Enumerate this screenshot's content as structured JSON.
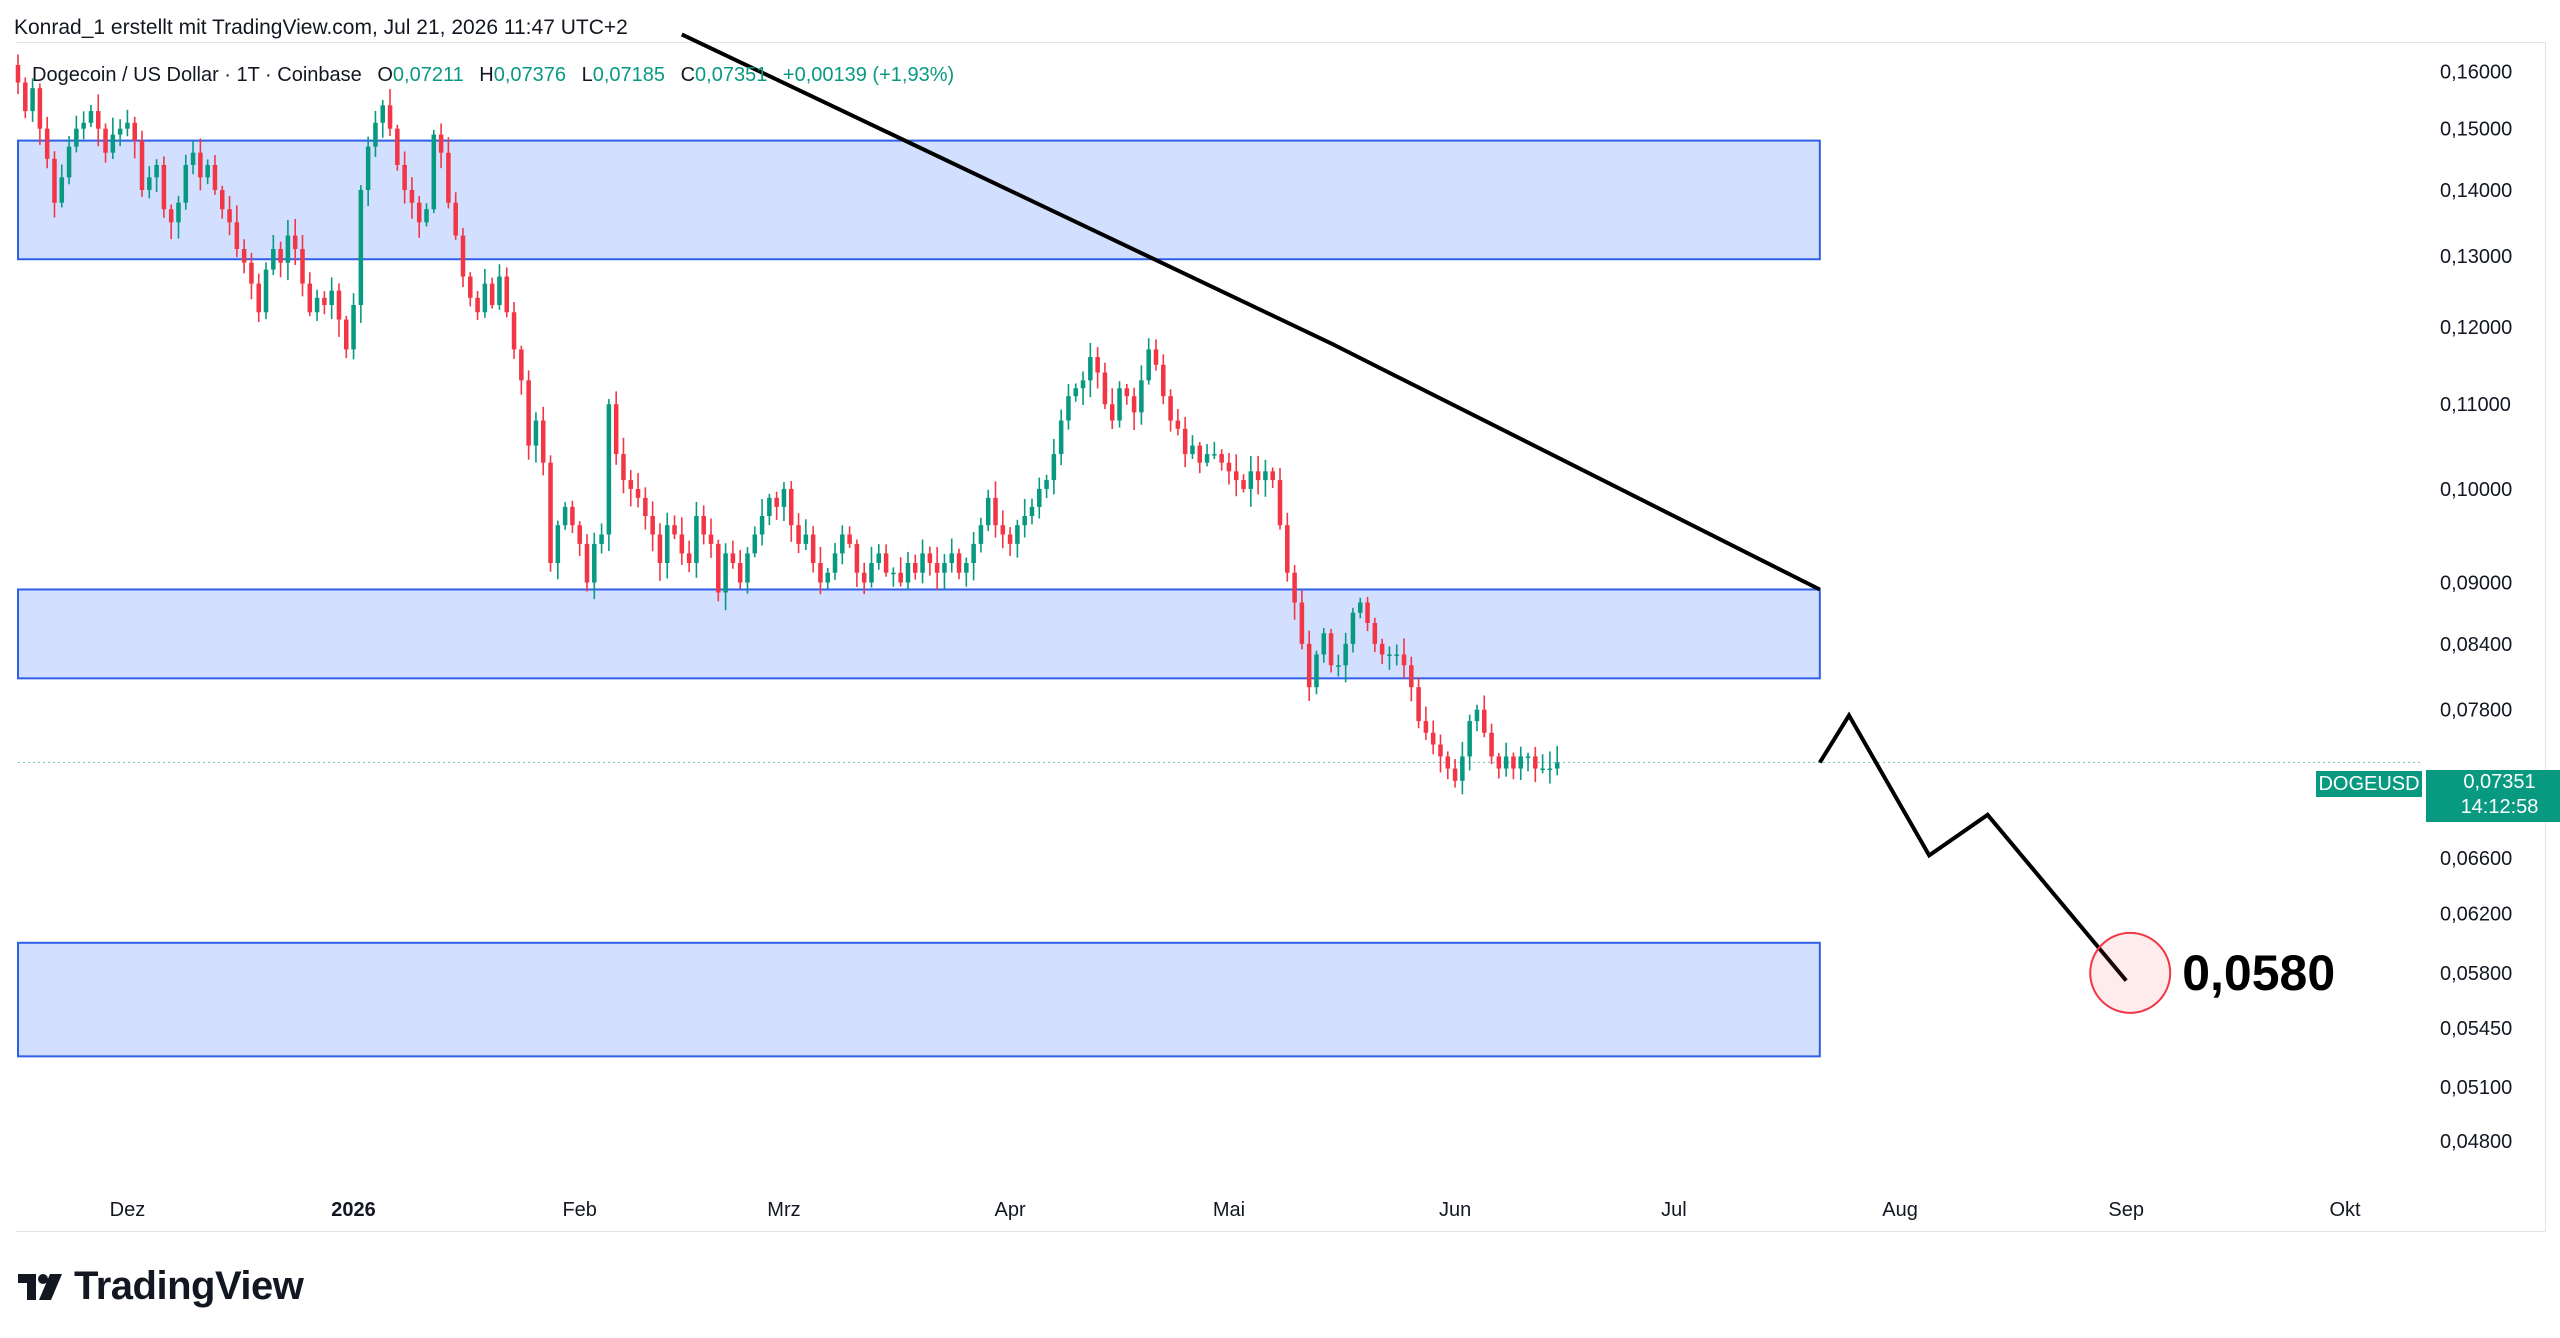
{
  "header": {
    "credit": "Konrad_1 erstellt mit TradingView.com, Jul 21, 2026 11:47 UTC+2"
  },
  "legend": {
    "symbol": "Dogecoin / US Dollar · 1T · Coinbase",
    "open_label": "O",
    "open": "0,07211",
    "high_label": "H",
    "high": "0,07376",
    "low_label": "L",
    "low": "0,07185",
    "close_label": "C",
    "close": "0,07351",
    "change": "+0,00139 (+1,93%)"
  },
  "price_tag": {
    "symbol": "DOGEUSD",
    "price": "0,07351",
    "countdown": "14:12:58"
  },
  "annotation": {
    "target_label": "0,0580"
  },
  "footer": {
    "logo_text": "TradingView"
  },
  "colors": {
    "up": "#089981",
    "down": "#f23645",
    "zone_fill": "#d2dffe",
    "zone_border": "#2f5fe8",
    "target_circle": "#f23645",
    "line": "#000000"
  },
  "chart_data": {
    "type": "candlestick",
    "symbol": "DOGEUSD",
    "exchange": "Coinbase",
    "interval": "1T",
    "y_scale": "log",
    "ylim": [
      0.0462,
      0.165
    ],
    "y_ticks": [
      "0,16000",
      "0,15000",
      "0,14000",
      "0,13000",
      "0,12000",
      "0,11000",
      "0,10000",
      "0,09000",
      "0,08400",
      "0,07800",
      "0,06600",
      "0,06200",
      "0,05800",
      "0,05450",
      "0,05100",
      "0,04800"
    ],
    "x_labels": [
      "Dez",
      "2026",
      "Feb",
      "Mrz",
      "Apr",
      "Mai",
      "Jun",
      "Jul",
      "Aug",
      "Sep",
      "Okt"
    ],
    "x_label_dates": [
      "2025-12-01",
      "2026-01-01",
      "2026-02-01",
      "2026-03-01",
      "2026-04-01",
      "2026-05-01",
      "2026-06-01",
      "2026-07-01",
      "2026-08-01",
      "2026-09-01",
      "2026-10-01"
    ],
    "xlim": [
      "2025-11-16",
      "2026-10-11"
    ],
    "last_price": 0.07351,
    "closes": {
      "start_date": "2025-11-16",
      "values": [
        0.158,
        0.153,
        0.157,
        0.15,
        0.145,
        0.138,
        0.142,
        0.147,
        0.15,
        0.151,
        0.153,
        0.15,
        0.146,
        0.149,
        0.15,
        0.151,
        0.148,
        0.14,
        0.142,
        0.144,
        0.137,
        0.135,
        0.138,
        0.144,
        0.146,
        0.142,
        0.144,
        0.14,
        0.137,
        0.135,
        0.131,
        0.129,
        0.126,
        0.122,
        0.128,
        0.131,
        0.129,
        0.133,
        0.131,
        0.126,
        0.122,
        0.124,
        0.123,
        0.125,
        0.121,
        0.117,
        0.123,
        0.14,
        0.147,
        0.151,
        0.154,
        0.15,
        0.144,
        0.14,
        0.138,
        0.135,
        0.137,
        0.149,
        0.146,
        0.138,
        0.133,
        0.127,
        0.124,
        0.122,
        0.126,
        0.123,
        0.127,
        0.122,
        0.117,
        0.113,
        0.105,
        0.108,
        0.103,
        0.092,
        0.096,
        0.098,
        0.096,
        0.094,
        0.09,
        0.094,
        0.095,
        0.11,
        0.104,
        0.101,
        0.1,
        0.099,
        0.097,
        0.095,
        0.092,
        0.096,
        0.095,
        0.093,
        0.092,
        0.097,
        0.095,
        0.094,
        0.089,
        0.093,
        0.092,
        0.09,
        0.093,
        0.095,
        0.097,
        0.099,
        0.098,
        0.1,
        0.096,
        0.094,
        0.095,
        0.092,
        0.09,
        0.091,
        0.093,
        0.095,
        0.094,
        0.091,
        0.09,
        0.092,
        0.093,
        0.091,
        0.091,
        0.09,
        0.092,
        0.091,
        0.093,
        0.092,
        0.091,
        0.092,
        0.093,
        0.091,
        0.092,
        0.094,
        0.096,
        0.099,
        0.096,
        0.095,
        0.094,
        0.096,
        0.097,
        0.098,
        0.1,
        0.101,
        0.104,
        0.108,
        0.111,
        0.112,
        0.113,
        0.116,
        0.114,
        0.11,
        0.108,
        0.112,
        0.111,
        0.109,
        0.113,
        0.117,
        0.115,
        0.111,
        0.108,
        0.107,
        0.104,
        0.105,
        0.103,
        0.104,
        0.104,
        0.103,
        0.102,
        0.101,
        0.1,
        0.102,
        0.101,
        0.102,
        0.101,
        0.096,
        0.091,
        0.088,
        0.084,
        0.08,
        0.083,
        0.085,
        0.082,
        0.082,
        0.084,
        0.087,
        0.088,
        0.086,
        0.084,
        0.083,
        0.083,
        0.083,
        0.082,
        0.08,
        0.077,
        0.076,
        0.075,
        0.074,
        0.073,
        0.072,
        0.074,
        0.077,
        0.078,
        0.076,
        0.074,
        0.073,
        0.074,
        0.073,
        0.074,
        0.074,
        0.073,
        0.073,
        0.073,
        0.0735
      ]
    },
    "zones": [
      {
        "name": "upper-resistance-zone",
        "y_low": 0.1295,
        "y_high": 0.148,
        "x_start": "2025-11-16",
        "x_end": "2026-07-21"
      },
      {
        "name": "middle-support-zone",
        "y_low": 0.0808,
        "y_high": 0.0893,
        "x_start": "2025-11-16",
        "x_end": "2026-07-21"
      },
      {
        "name": "lower-target-zone",
        "y_low": 0.0528,
        "y_high": 0.06,
        "x_start": "2025-11-16",
        "x_end": "2026-07-21"
      }
    ],
    "trendline": {
      "points": [
        [
          "2026-02-15",
          0.1668
        ],
        [
          "2026-05-15",
          0.1178
        ],
        [
          "2026-07-21",
          0.0893
        ]
      ]
    },
    "projection": {
      "points": [
        [
          "2026-07-21",
          0.0735
        ],
        [
          "2026-07-25",
          0.0775
        ],
        [
          "2026-08-05",
          0.0662
        ],
        [
          "2026-08-13",
          0.0693
        ],
        [
          "2026-09-01",
          0.0575
        ]
      ]
    },
    "target": {
      "date": "2026-09-01",
      "price": 0.058,
      "label": "0,0580"
    }
  }
}
